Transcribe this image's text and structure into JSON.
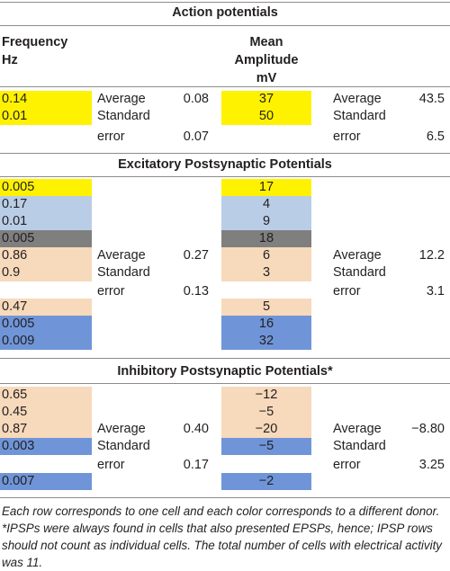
{
  "colors": {
    "yellow": "#fff200",
    "light_blue": "#b9cde6",
    "gray": "#7f7f7f",
    "peach": "#f7d9bb",
    "blue": "#6f95d8"
  },
  "header": {
    "section1_title": "Action potentials",
    "freq_line1": "Frequency",
    "freq_line2": "Hz",
    "amp_line1": "Mean",
    "amp_line2": "Amplitude",
    "amp_line3": "mV"
  },
  "section1": {
    "rows": [
      {
        "freq": "0.14",
        "amp": "37",
        "color": "yellow"
      },
      {
        "freq": "0.01",
        "amp": "50",
        "color": "yellow"
      }
    ],
    "average_label": "Average",
    "standard_label": "Standard",
    "error_label": "error",
    "freq_average": "0.08",
    "freq_error": "0.07",
    "amp_average": "43.5",
    "amp_error": "6.5"
  },
  "section2": {
    "title": "Excitatory Postsynaptic Potentials",
    "rows": [
      {
        "freq": "0.005",
        "amp": "17",
        "color": "yellow"
      },
      {
        "freq": "0.17",
        "amp": "4",
        "color": "light_blue"
      },
      {
        "freq": "0.01",
        "amp": "9",
        "color": "light_blue"
      },
      {
        "freq": "0.005",
        "amp": "18",
        "color": "gray"
      },
      {
        "freq": "0.86",
        "amp": "6",
        "color": "peach"
      },
      {
        "freq": "0.9",
        "amp": "3",
        "color": "peach"
      },
      {
        "freq": "0.47",
        "amp": "5",
        "color": "peach"
      },
      {
        "freq": "0.005",
        "amp": "16",
        "color": "blue"
      },
      {
        "freq": "0.009",
        "amp": "32",
        "color": "blue"
      }
    ],
    "average_label": "Average",
    "standard_label": "Standard",
    "error_label": "error",
    "freq_average": "0.27",
    "freq_error": "0.13",
    "amp_average": "12.2",
    "amp_error": "3.1"
  },
  "section3": {
    "title": "Inhibitory Postsynaptic Potentials*",
    "rows": [
      {
        "freq": "0.65",
        "amp": "−12",
        "color": "peach"
      },
      {
        "freq": "0.45",
        "amp": "−5",
        "color": "peach"
      },
      {
        "freq": "0.87",
        "amp": "−20",
        "color": "peach"
      },
      {
        "freq": "0.003",
        "amp": "−5",
        "color": "blue"
      },
      {
        "freq": "0.007",
        "amp": "−2",
        "color": "blue"
      }
    ],
    "average_label": "Average",
    "standard_label": "Standard",
    "error_label": "error",
    "freq_average": "0.40",
    "freq_error": "0.17",
    "amp_average": "−8.80",
    "amp_error": "3.25"
  },
  "footnote": "Each row corresponds to one cell and each color corresponds to a different donor. *IPSPs were always found in cells that also presented EPSPs, hence; IPSP rows should not count as individual cells. The total number of cells with electrical activity was 11."
}
